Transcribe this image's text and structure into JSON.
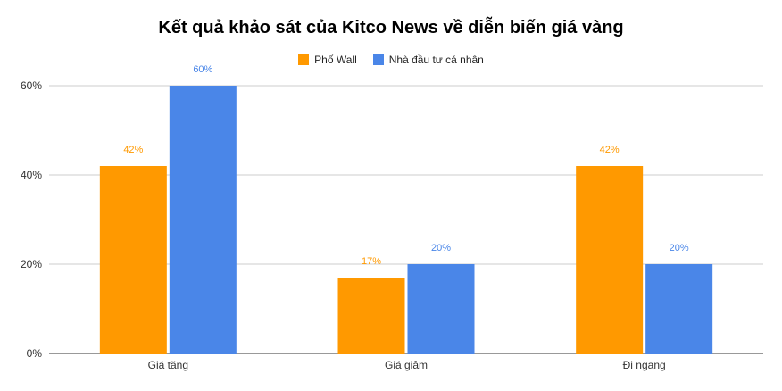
{
  "chart_data": {
    "type": "bar",
    "title": "Kết quả khảo sát của Kitco News về diễn biến giá vàng",
    "categories": [
      "Giá tăng",
      "Giá giảm",
      "Đi ngang"
    ],
    "series": [
      {
        "name": "Phố Wall",
        "values": [
          42,
          17,
          42
        ],
        "labels": [
          "42%",
          "17%",
          "42%"
        ],
        "color": "#ff9900"
      },
      {
        "name": "Nhà đầu tư cá nhân",
        "values": [
          60,
          20,
          20
        ],
        "labels": [
          "60%",
          "20%",
          "20%"
        ],
        "color": "#4a86e8"
      }
    ],
    "yticks": [
      "0%",
      "20%",
      "40%",
      "60%"
    ],
    "ylim": [
      0,
      60
    ],
    "grid": true,
    "legend_position": "top"
  }
}
